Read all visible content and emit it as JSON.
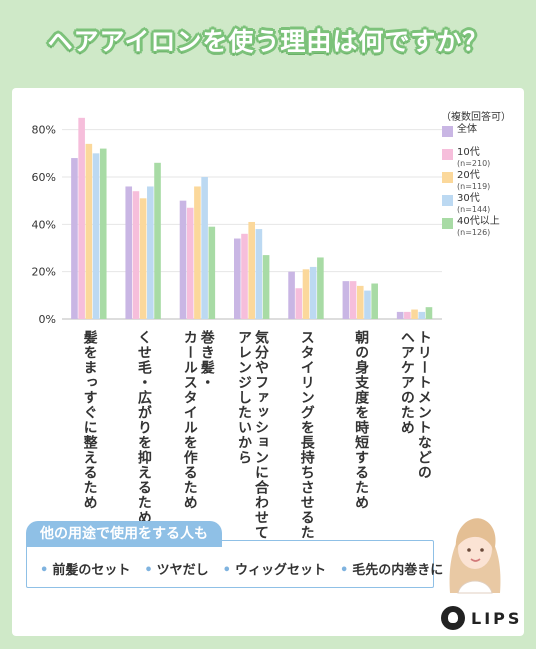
{
  "title": "ヘアアイロンを使う理由は何ですか？",
  "legend_title": "（複数回答可）",
  "chart_data": {
    "type": "bar",
    "title": "ヘアアイロンを使う理由は何ですか？",
    "ylim": [
      0,
      90
    ],
    "yticks": [
      "0%",
      "20%",
      "40%",
      "60%",
      "80%"
    ],
    "ytick_values": [
      0,
      20,
      40,
      60,
      80
    ],
    "grid": true,
    "legend": "right",
    "categories": [
      "髪をまっすぐに整えるため",
      "くせ毛・広がりを抑えるため",
      "巻き髪・\nカールスタイルを作るため",
      "気分やファッションに合わせて\nアレンジしたいから",
      "スタイリングを長持ちさせるため",
      "朝の身支度を時短するため",
      "トリートメントなどの\nヘアケアのため"
    ],
    "series": [
      {
        "name": "全体",
        "sub": "",
        "color": "#c9b6e4",
        "values": [
          68,
          56,
          50,
          34,
          20,
          16,
          3
        ]
      },
      {
        "name": "10代",
        "sub": "(n=210)",
        "color": "#f6bedb",
        "values": [
          85,
          54,
          47,
          36,
          13,
          16,
          3
        ]
      },
      {
        "name": "20代",
        "sub": "(n=119)",
        "color": "#fbd89b",
        "values": [
          74,
          51,
          56,
          41,
          21,
          14,
          4
        ]
      },
      {
        "name": "30代",
        "sub": "(n=144)",
        "color": "#bcd9f2",
        "values": [
          70,
          56,
          60,
          38,
          22,
          12,
          3
        ]
      },
      {
        "name": "40代以上",
        "sub": "(n=126)",
        "color": "#a8dba5",
        "values": [
          72,
          66,
          39,
          27,
          26,
          15,
          5
        ]
      }
    ]
  },
  "other_uses": {
    "heading": "他の用途で使用をする人も",
    "items": [
      "前髪のセット",
      "ツヤだし",
      "ウィッグセット",
      "毛先の内巻きに"
    ]
  },
  "brand": "LIPS"
}
